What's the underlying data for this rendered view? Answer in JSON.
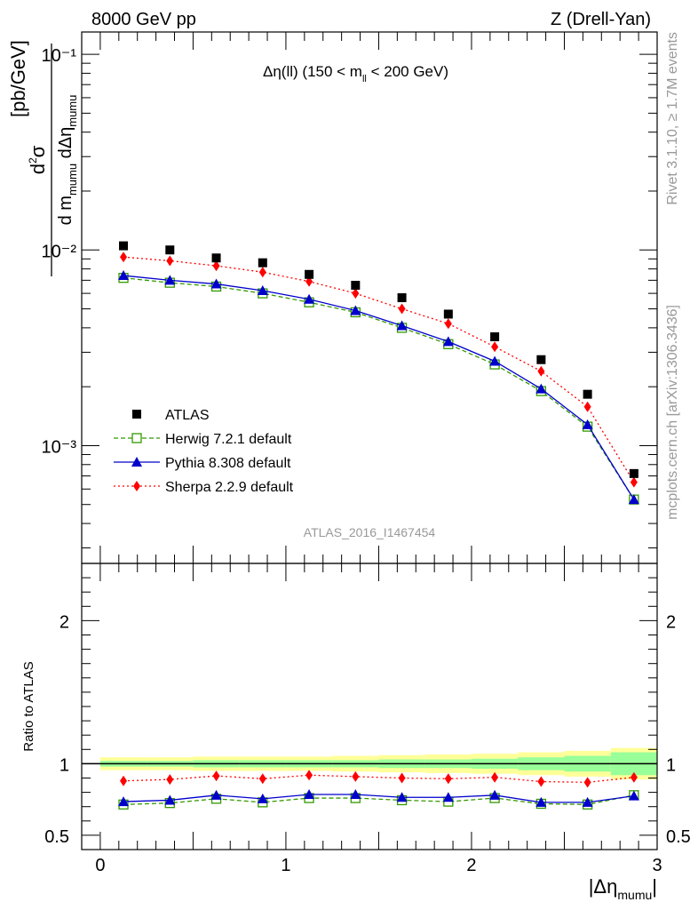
{
  "header": {
    "left": "8000 GeV pp",
    "right": "Z (Drell-Yan)"
  },
  "side_text": {
    "rivet": "Rivet 3.1.10, ≥ 1.7M events",
    "mcplots": "mcplots.cern.ch [arXiv:1306.3436]"
  },
  "watermark": "ATLAS_2016_I1467454",
  "plot_title": "Δη(ll) (150 < m_ll < 200 GeV)",
  "colors": {
    "atlas": "#000000",
    "herwig": "#339900",
    "pythia": "#0000cc",
    "sherpa": "#ff0000",
    "band_outer": "#ffff99",
    "band_inner": "#99ff99"
  },
  "chart_data": [
    {
      "type": "scatter",
      "panel": "main",
      "ylabel": "d²σ / d m_mumu dΔη_mumu [pb/GeV]",
      "yscale": "log",
      "ylim": [
        0.00025,
        0.13
      ],
      "xlim": [
        -0.1,
        3.0
      ],
      "y_tick_labels": [
        "10⁻³",
        "10⁻²",
        "10⁻¹"
      ],
      "legend": "left",
      "x": [
        0.125,
        0.375,
        0.625,
        0.875,
        1.125,
        1.375,
        1.625,
        1.875,
        2.125,
        2.375,
        2.625,
        2.875
      ],
      "series": [
        {
          "name": "ATLAS",
          "style": "square",
          "values": [
            0.0105,
            0.01,
            0.0091,
            0.0086,
            0.0075,
            0.0066,
            0.0057,
            0.0047,
            0.0036,
            0.00275,
            0.00183,
            0.00072
          ]
        },
        {
          "name": "Herwig 7.2.1 default",
          "style": "open-square-dashed",
          "values": [
            0.0072,
            0.0068,
            0.0065,
            0.006,
            0.0054,
            0.0048,
            0.004,
            0.0033,
            0.0026,
            0.0019,
            0.00125,
            0.00053
          ]
        },
        {
          "name": "Pythia 8.308 default",
          "style": "triangle-solid",
          "values": [
            0.0074,
            0.007,
            0.0067,
            0.0062,
            0.0056,
            0.0049,
            0.0041,
            0.0034,
            0.0027,
            0.00195,
            0.00128,
            0.00053
          ]
        },
        {
          "name": "Sherpa 2.2.9 default",
          "style": "diamond-dotted",
          "values": [
            0.0092,
            0.0088,
            0.0083,
            0.0077,
            0.0069,
            0.006,
            0.005,
            0.0042,
            0.0032,
            0.0024,
            0.00158,
            0.00065
          ]
        }
      ]
    },
    {
      "type": "scatter",
      "panel": "ratio",
      "ylabel": "Ratio to ATLAS",
      "xlabel": "|Δη_mumu|",
      "ylim": [
        0.4,
        2.4
      ],
      "xlim": [
        -0.1,
        3.0
      ],
      "x_ticks": [
        0,
        1,
        2,
        3
      ],
      "y_ticks": [
        0.5,
        1,
        2
      ],
      "x": [
        0.125,
        0.375,
        0.625,
        0.875,
        1.125,
        1.375,
        1.625,
        1.875,
        2.125,
        2.375,
        2.625,
        2.875
      ],
      "band_inner": [
        0.02,
        0.02,
        0.025,
        0.025,
        0.025,
        0.025,
        0.03,
        0.03,
        0.035,
        0.045,
        0.055,
        0.08
      ],
      "band_outer": [
        0.045,
        0.045,
        0.05,
        0.05,
        0.05,
        0.055,
        0.06,
        0.065,
        0.07,
        0.08,
        0.09,
        0.11
      ],
      "series": [
        {
          "name": "Herwig 7.2.1 default",
          "values": [
            0.715,
            0.725,
            0.755,
            0.73,
            0.76,
            0.76,
            0.745,
            0.735,
            0.76,
            0.72,
            0.715,
            0.78
          ]
        },
        {
          "name": "Pythia 8.308 default",
          "values": [
            0.735,
            0.745,
            0.78,
            0.755,
            0.785,
            0.785,
            0.765,
            0.765,
            0.78,
            0.73,
            0.73,
            0.775
          ]
        },
        {
          "name": "Sherpa 2.2.9 default",
          "values": [
            0.88,
            0.89,
            0.915,
            0.895,
            0.92,
            0.91,
            0.9,
            0.895,
            0.905,
            0.875,
            0.87,
            0.905
          ]
        }
      ]
    }
  ]
}
